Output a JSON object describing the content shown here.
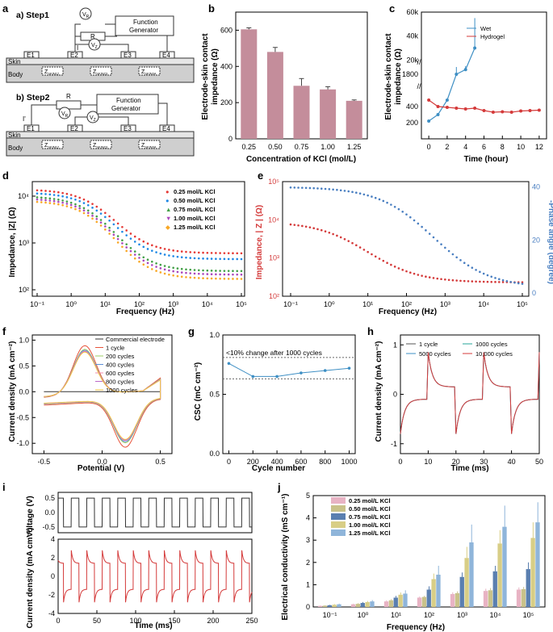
{
  "panels": {
    "a": "a",
    "b": "b",
    "c": "c",
    "d": "d",
    "e": "e",
    "f": "f",
    "g": "g",
    "h": "h",
    "i": "i",
    "j": "j"
  },
  "schematic": {
    "step1": "a) Step1",
    "step2": "b) Step2",
    "generator_line1": "Function",
    "generator_line2": "Generator",
    "skin": "Skin",
    "body": "Body",
    "electrodes": [
      "E1",
      "E2",
      "E3",
      "E4"
    ],
    "impedances": [
      "Z",
      "Z",
      "Z"
    ],
    "impedance_subs": [
      "SKIN12",
      "SKIN23",
      "SKIN34"
    ],
    "resistor": "R",
    "vr": "V",
    "vr_sub": "R",
    "vz": "V",
    "vz_sub": "Z",
    "current_step1": "I",
    "current_step2": "I'"
  },
  "chart_data": [
    {
      "id": "b",
      "type": "bar",
      "categories": [
        "0.25",
        "0.50",
        "0.75",
        "1.00",
        "1.25"
      ],
      "values": [
        605,
        480,
        293,
        273,
        210
      ],
      "errors": [
        8,
        25,
        40,
        15,
        5
      ],
      "xlabel": "Concentration of KCl (mol/L)",
      "ylabel_line1": "Electrode-skin contact",
      "ylabel_line2": "impedance (Ω)",
      "ylim": [
        0,
        700
      ],
      "yticks": [
        "0",
        "200",
        "400",
        "600"
      ],
      "color": "#c48d9b"
    },
    {
      "id": "c",
      "type": "line",
      "xlabel": "Time (hour)",
      "ylabel_line1": "Electrode-skin contact",
      "ylabel_line2": "impedance (Ω)",
      "xlim": [
        0,
        12
      ],
      "xticks": [
        "0",
        "2",
        "4",
        "6",
        "8",
        "10",
        "12"
      ],
      "yticks_lower": [
        "200",
        "400"
      ],
      "yticks_mid": [
        "1800"
      ],
      "yticks_upper": [
        "20k",
        "40k",
        "60k"
      ],
      "series": [
        {
          "name": "Wet",
          "color": "#3e8fc4",
          "x": [
            0,
            1,
            2,
            3,
            4,
            5
          ],
          "y": [
            220,
            300,
            480,
            1800,
            12000,
            30000
          ],
          "err": [
            0,
            0,
            0,
            150,
            3000,
            25000
          ]
        },
        {
          "name": "Hydrogel",
          "color": "#d43a3a",
          "x": [
            0,
            1,
            2,
            3,
            4,
            5,
            6,
            7,
            8,
            9,
            10,
            11,
            12
          ],
          "y": [
            480,
            400,
            390,
            380,
            370,
            380,
            350,
            330,
            335,
            330,
            345,
            350,
            355
          ]
        }
      ]
    },
    {
      "id": "d",
      "type": "scatter",
      "xlabel": "Frequency (Hz)",
      "ylabel": "Impedance, |Z| (Ω)",
      "xlim": [
        0.1,
        100000
      ],
      "ylim": [
        100,
        15000
      ],
      "xticks": [
        "10⁻¹",
        "10⁰",
        "10¹",
        "10²",
        "10³",
        "10⁴",
        "10⁵"
      ],
      "yticks": [
        "10²",
        "10³",
        "10⁴"
      ],
      "series": [
        {
          "name": "0.25 mol/L KCl",
          "color": "#e53935",
          "marker": "●",
          "low": 600,
          "high": 14000
        },
        {
          "name": "0.50 mol/L KCl",
          "color": "#1e88e5",
          "marker": "●",
          "low": 450,
          "high": 12000
        },
        {
          "name": "0.75 mol/L KCl",
          "color": "#43a047",
          "marker": "▲",
          "low": 250,
          "high": 10000
        },
        {
          "name": "1.00 mol/L KCl",
          "color": "#ab47bc",
          "marker": "▼",
          "low": 210,
          "high": 9000
        },
        {
          "name": "1.25 mol/L KCl",
          "color": "#f9a825",
          "marker": "◆",
          "low": 170,
          "high": 8000
        }
      ]
    },
    {
      "id": "e",
      "type": "scatter",
      "xlabel": "Frequency (Hz)",
      "ylabel_left": "Impedance, | Z | (Ω)",
      "ylabel_right": "-Phase angle (degree)",
      "xticks": [
        "10⁻¹",
        "10⁰",
        "10¹",
        "10²",
        "10³",
        "10⁴",
        "10⁵"
      ],
      "yticks_left": [
        "10²",
        "10³",
        "10⁴",
        "10⁵"
      ],
      "yticks_right": [
        "0",
        "20",
        "40"
      ],
      "series": [
        {
          "name": "Impedance",
          "color": "#d43a3a",
          "low": 230,
          "high": 9000
        },
        {
          "name": "Phase angle",
          "color": "#4a7fc1",
          "low": 2,
          "high": 40
        }
      ]
    },
    {
      "id": "f",
      "type": "line",
      "xlabel": "Potential (V)",
      "ylabel": "Current density (mA cm⁻²)",
      "xlim": [
        -0.6,
        0.6
      ],
      "ylim": [
        -1.2,
        1.1
      ],
      "xticks": [
        "-0.5",
        "0.0",
        "0.5"
      ],
      "yticks": [
        "-1.0",
        "-0.5",
        "0.0",
        "0.5",
        "1.0"
      ],
      "series": [
        {
          "name": "Commercial electrode",
          "color": "#333333",
          "scale": 0
        },
        {
          "name": "1 cycle",
          "color": "#e8533a",
          "scale": 1.0
        },
        {
          "name": "200 cycles",
          "color": "#9ccc65",
          "scale": 0.92
        },
        {
          "name": "400 cycles",
          "color": "#5c8fd6",
          "scale": 0.9
        },
        {
          "name": "600 cycles",
          "color": "#f48fb1",
          "scale": 0.88
        },
        {
          "name": "800 cycles",
          "color": "#ba68c8",
          "scale": 0.87
        },
        {
          "name": "1000 cycles",
          "color": "#f6c945",
          "scale": 0.86
        }
      ]
    },
    {
      "id": "g",
      "type": "line",
      "xlabel": "Cycle number",
      "ylabel": "CSC (mC cm⁻²)",
      "xlim": [
        -50,
        1050
      ],
      "ylim": [
        0.0,
        1.0
      ],
      "xticks": [
        "0",
        "200",
        "400",
        "600",
        "800",
        "1000"
      ],
      "yticks": [
        "0.0",
        "0.5",
        "1.0"
      ],
      "x": [
        0,
        200,
        400,
        600,
        800,
        1000
      ],
      "y": [
        0.76,
        0.65,
        0.65,
        0.68,
        0.7,
        0.72
      ],
      "band": [
        0.63,
        0.81
      ],
      "annotation": "<10% change after 1000 cycles",
      "color": "#3e8fc4"
    },
    {
      "id": "h",
      "type": "line",
      "xlabel": "Time (ms)",
      "ylabel": "Current density (mA cm⁻²)",
      "xlim": [
        0,
        50
      ],
      "ylim": [
        -1.2,
        1.2
      ],
      "xticks": [
        "0",
        "10",
        "20",
        "30",
        "40",
        "50"
      ],
      "yticks": [
        "-1",
        "0",
        "1"
      ],
      "series": [
        {
          "name": "1 cycle",
          "color": "#555555"
        },
        {
          "name": "1000 cycles",
          "color": "#26a69a"
        },
        {
          "name": "5000 cycles",
          "color": "#3e8fc4"
        },
        {
          "name": "10,000 cycles",
          "color": "#d43a3a"
        }
      ]
    },
    {
      "id": "i",
      "type": "line",
      "xlabel": "Time (ms)",
      "ylabel_top": "Voltage (V)",
      "ylabel_bottom": "Current density (mA cm⁻²)",
      "xlim": [
        0,
        250
      ],
      "xticks": [
        "0",
        "50",
        "100",
        "150",
        "200",
        "250"
      ],
      "yticks_top": [
        "-0.5",
        "0.0",
        "0.5"
      ],
      "yticks_bottom": [
        "-4",
        "-2",
        "0",
        "2",
        "4"
      ],
      "period_ms": 20,
      "voltage_amplitude": 0.5,
      "current_peak": 2.8,
      "colors": {
        "voltage": "#333333",
        "current": "#d43a3a"
      }
    },
    {
      "id": "j",
      "type": "bar",
      "xlabel": "Frequency (Hz)",
      "ylabel": "Electrical conductivity (mS cm⁻¹)",
      "ylim": [
        0,
        5
      ],
      "yticks": [
        "0",
        "1",
        "2",
        "3",
        "4",
        "5"
      ],
      "categories": [
        "10⁻¹",
        "10⁰",
        "10¹",
        "10²",
        "10³",
        "10⁴",
        "10⁵"
      ],
      "series": [
        {
          "name": "0.25 mol/L KCl",
          "color": "#e8b3c4",
          "values": [
            0.05,
            0.12,
            0.25,
            0.42,
            0.58,
            0.72,
            0.78
          ],
          "err": [
            0.02,
            0.03,
            0.05,
            0.05,
            0.08,
            0.1,
            0.1
          ]
        },
        {
          "name": "0.50 mol/L KCl",
          "color": "#c9c28a",
          "values": [
            0.06,
            0.14,
            0.3,
            0.45,
            0.62,
            0.75,
            0.8
          ],
          "err": [
            0.02,
            0.03,
            0.05,
            0.05,
            0.08,
            0.1,
            0.1
          ]
        },
        {
          "name": "0.75 mol/L KCl",
          "color": "#5a7fb0",
          "values": [
            0.08,
            0.18,
            0.42,
            0.78,
            1.35,
            1.6,
            1.7
          ],
          "err": [
            0.02,
            0.04,
            0.08,
            0.15,
            0.2,
            0.25,
            0.3
          ]
        },
        {
          "name": "1.00 mol/L KCl",
          "color": "#d8ce86",
          "values": [
            0.1,
            0.22,
            0.55,
            1.25,
            2.2,
            2.85,
            3.1
          ],
          "err": [
            0.03,
            0.05,
            0.1,
            0.25,
            0.5,
            0.6,
            0.7
          ]
        },
        {
          "name": "1.25 mol/L KCl",
          "color": "#8fb5da",
          "values": [
            0.12,
            0.25,
            0.6,
            1.45,
            2.9,
            3.6,
            3.8
          ],
          "err": [
            0.03,
            0.06,
            0.15,
            0.4,
            0.8,
            0.95,
            0.9
          ]
        }
      ]
    }
  ]
}
